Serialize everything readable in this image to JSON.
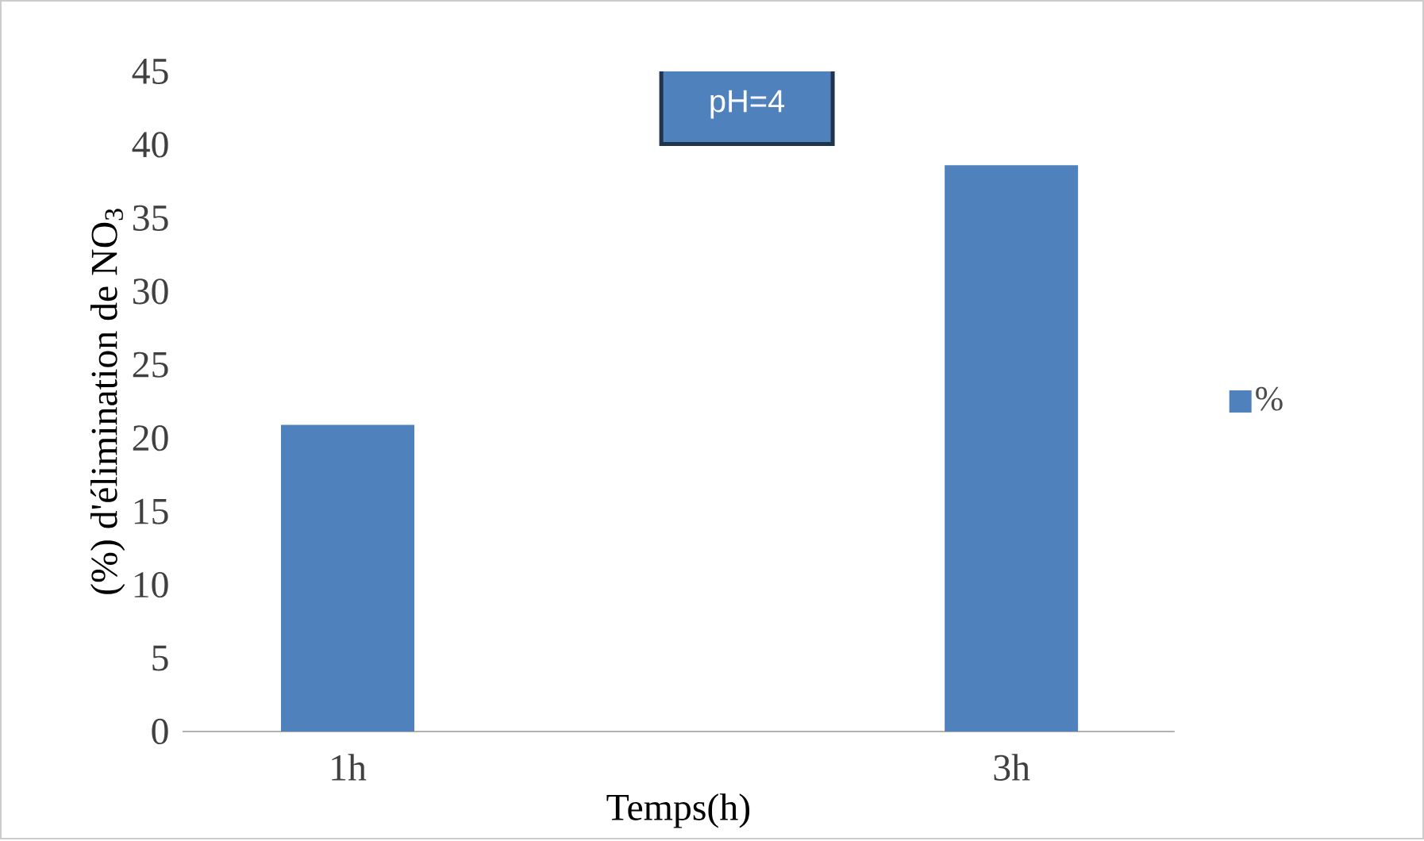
{
  "chart_data": {
    "type": "bar",
    "categories": [
      "1h",
      "3h"
    ],
    "series": [
      {
        "name": "%",
        "color": "#4f81bd",
        "values": [
          20.9,
          38.6
        ]
      }
    ],
    "xlabel": "Temps(h)",
    "ylabel": "(%) d'élimination de NO$_{3}$",
    "annotations": [
      "pH=4"
    ],
    "ylim": [
      0,
      45
    ],
    "yticks": [
      0,
      5,
      10,
      15,
      20,
      25,
      30,
      35,
      40,
      45
    ],
    "grid": false,
    "legend": "right"
  }
}
